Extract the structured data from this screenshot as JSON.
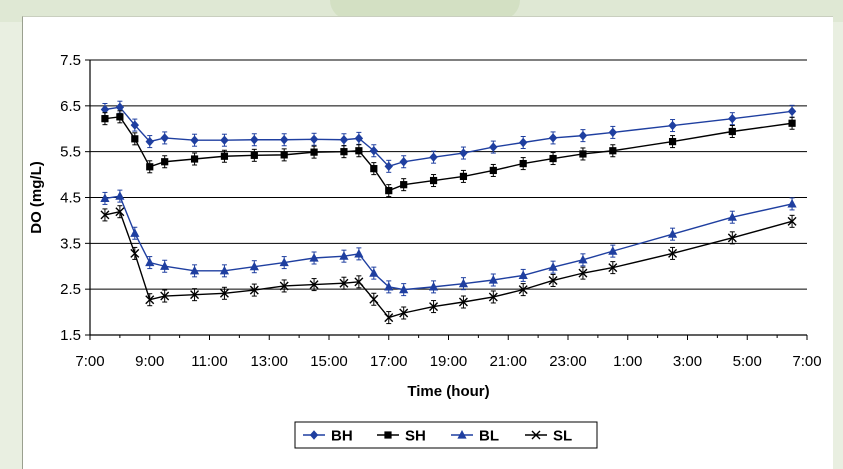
{
  "chart_data": {
    "type": "line",
    "xlabel": "Time (hour)",
    "ylabel": "DO (mg/L)",
    "ylim": [
      1.5,
      7.5
    ],
    "y_ticks": [
      "1.5",
      "2.5",
      "3.5",
      "4.5",
      "5.5",
      "6.5",
      "7.5"
    ],
    "x_ticks": [
      "7:00",
      "9:00",
      "11:00",
      "13:00",
      "15:00",
      "17:00",
      "19:00",
      "21:00",
      "23:00",
      "1:00",
      "3:00",
      "5:00",
      "7:00"
    ],
    "xlim_hours_elapsed_from_7_00": [
      0,
      24
    ],
    "grid": "horizontal",
    "legend_position": "bottom",
    "series": [
      {
        "name": "BH",
        "marker": "diamond",
        "color": "#1f3fa0",
        "x": [
          "7:30",
          "8:00",
          "8:30",
          "9:00",
          "9:30",
          "10:30",
          "11:30",
          "12:30",
          "13:30",
          "14:30",
          "15:30",
          "16:00",
          "16:30",
          "17:00",
          "17:30",
          "18:30",
          "19:30",
          "20:30",
          "21:30",
          "22:30",
          "23:30",
          "0:30",
          "2:30",
          "4:30",
          "6:30"
        ],
        "values": [
          6.42,
          6.47,
          6.08,
          5.72,
          5.8,
          5.75,
          5.75,
          5.76,
          5.76,
          5.77,
          5.76,
          5.79,
          5.52,
          5.18,
          5.28,
          5.38,
          5.47,
          5.6,
          5.7,
          5.8,
          5.85,
          5.92,
          6.07,
          6.22,
          6.38
        ]
      },
      {
        "name": "SH",
        "marker": "square",
        "color": "#000000",
        "x": [
          "7:30",
          "8:00",
          "8:30",
          "9:00",
          "9:30",
          "10:30",
          "11:30",
          "12:30",
          "13:30",
          "14:30",
          "15:30",
          "16:00",
          "16:30",
          "17:00",
          "17:30",
          "18:30",
          "19:30",
          "20:30",
          "21:30",
          "22:30",
          "23:30",
          "0:30",
          "2:30",
          "4:30",
          "6:30"
        ],
        "values": [
          6.22,
          6.26,
          5.78,
          5.17,
          5.28,
          5.34,
          5.4,
          5.42,
          5.43,
          5.49,
          5.5,
          5.52,
          5.13,
          4.65,
          4.78,
          4.87,
          4.96,
          5.09,
          5.24,
          5.35,
          5.45,
          5.52,
          5.72,
          5.94,
          6.12
        ]
      },
      {
        "name": "BL",
        "marker": "triangle",
        "color": "#1f3fa0",
        "x": [
          "7:30",
          "8:00",
          "8:30",
          "9:00",
          "9:30",
          "10:30",
          "11:30",
          "12:30",
          "13:30",
          "14:30",
          "15:30",
          "16:00",
          "16:30",
          "17:00",
          "17:30",
          "18:30",
          "19:30",
          "20:30",
          "21:30",
          "22:30",
          "23:30",
          "0:30",
          "2:30",
          "4:30",
          "6:30"
        ],
        "values": [
          4.48,
          4.53,
          3.72,
          3.08,
          3.0,
          2.9,
          2.9,
          2.99,
          3.08,
          3.18,
          3.22,
          3.27,
          2.85,
          2.55,
          2.49,
          2.55,
          2.62,
          2.7,
          2.8,
          2.98,
          3.14,
          3.33,
          3.7,
          4.07,
          4.36
        ]
      },
      {
        "name": "SL",
        "marker": "x",
        "color": "#000000",
        "x": [
          "7:30",
          "8:00",
          "8:30",
          "9:00",
          "9:30",
          "10:30",
          "11:30",
          "12:30",
          "13:30",
          "14:30",
          "15:30",
          "16:00",
          "16:30",
          "17:00",
          "17:30",
          "18:30",
          "19:30",
          "20:30",
          "21:30",
          "22:30",
          "23:30",
          "0:30",
          "2:30",
          "4:30",
          "6:30"
        ],
        "values": [
          4.12,
          4.19,
          3.28,
          2.27,
          2.35,
          2.38,
          2.41,
          2.48,
          2.57,
          2.6,
          2.63,
          2.66,
          2.28,
          1.88,
          1.98,
          2.12,
          2.22,
          2.33,
          2.49,
          2.69,
          2.85,
          2.97,
          3.28,
          3.62,
          3.98
        ]
      }
    ]
  }
}
